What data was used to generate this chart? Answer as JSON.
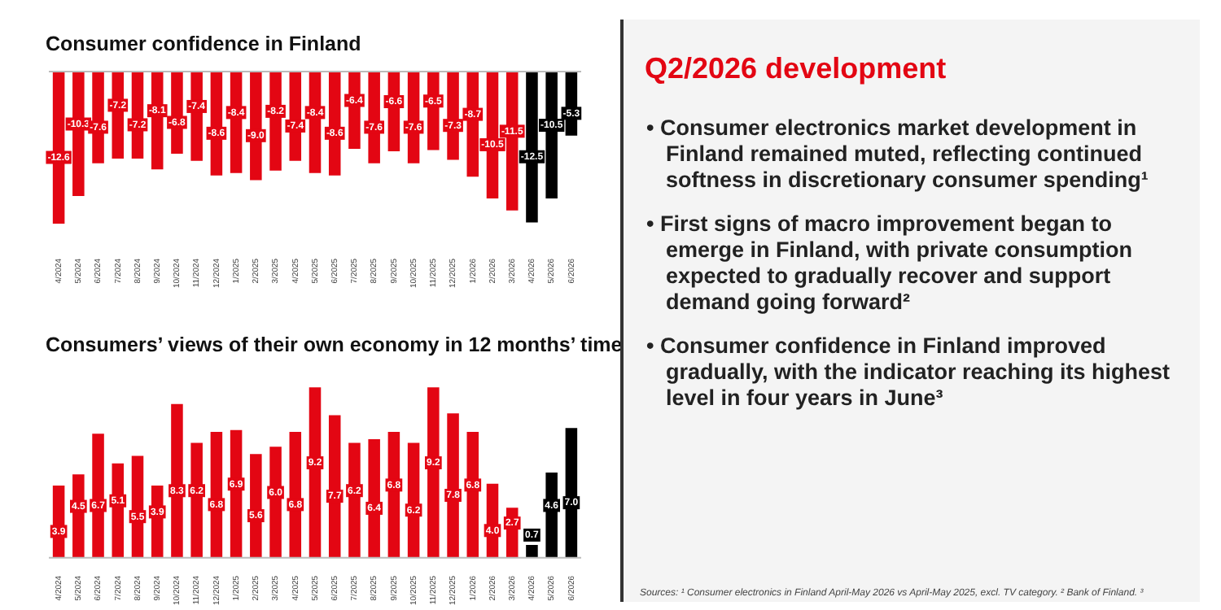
{
  "chart_data": [
    {
      "type": "bar",
      "title": "Consumer confidence in Finland",
      "categories": [
        "4/2024",
        "5/2024",
        "6/2024",
        "7/2024",
        "8/2024",
        "9/2024",
        "10/2024",
        "11/2024",
        "12/2024",
        "1/2025",
        "2/2025",
        "3/2025",
        "4/2025",
        "5/2025",
        "6/2025",
        "7/2025",
        "8/2025",
        "9/2025",
        "10/2025",
        "11/2025",
        "12/2025",
        "1/2026",
        "2/2026",
        "3/2026",
        "4/2026",
        "5/2026",
        "6/2026"
      ],
      "values": [
        -12.6,
        -10.3,
        -7.6,
        -7.2,
        -7.2,
        -8.1,
        -6.8,
        -7.4,
        -8.6,
        -8.4,
        -9.0,
        -8.2,
        -7.4,
        -8.4,
        -8.6,
        -6.4,
        -7.6,
        -6.6,
        -7.6,
        -6.5,
        -7.3,
        -8.7,
        -10.5,
        -11.5,
        -12.5,
        -10.5,
        -5.3
      ],
      "value_labels": [
        "-12.6",
        "-10.3",
        "-7.6",
        "-7.2",
        "-7.2",
        "-8.1",
        "-6.8",
        "-7.4",
        "-8.6",
        "-8.4",
        "-9.0",
        "-8.2",
        "-7.4",
        "-8.4",
        "-8.6",
        "-6.4",
        "-7.6",
        "-6.6",
        "-7.6",
        "-6.5",
        "-7.3",
        "-8.7",
        "-10.5",
        "-11.5",
        "-12.5",
        "-10.5",
        "-5.3"
      ],
      "colors": [
        "#e30613",
        "#e30613",
        "#e30613",
        "#e30613",
        "#e30613",
        "#e30613",
        "#e30613",
        "#e30613",
        "#e30613",
        "#e30613",
        "#e30613",
        "#e30613",
        "#e30613",
        "#e30613",
        "#e30613",
        "#e30613",
        "#e30613",
        "#e30613",
        "#e30613",
        "#e30613",
        "#e30613",
        "#e30613",
        "#e30613",
        "#e30613",
        "#000000",
        "#000000",
        "#000000"
      ],
      "tick_labels": "x"
    },
    {
      "type": "bar",
      "title": "Consumers’ views of their own economy in 12 months’ time",
      "categories": [
        "4/2024",
        "5/2024",
        "6/2024",
        "7/2024",
        "8/2024",
        "9/2024",
        "10/2024",
        "11/2024",
        "12/2024",
        "1/2025",
        "2/2025",
        "3/2025",
        "4/2025",
        "5/2025",
        "6/2025",
        "7/2025",
        "8/2025",
        "9/2025",
        "10/2025",
        "11/2025",
        "12/2025",
        "1/2026",
        "2/2026",
        "3/2026",
        "4/2026",
        "5/2026",
        "6/2026"
      ],
      "values": [
        3.9,
        4.5,
        6.7,
        5.1,
        5.5,
        3.9,
        8.3,
        6.2,
        6.8,
        6.9,
        5.6,
        6.0,
        6.8,
        9.2,
        7.7,
        6.2,
        6.4,
        6.8,
        6.2,
        9.2,
        7.8,
        6.8,
        4.0,
        2.7,
        0.7,
        4.6,
        7.0
      ],
      "value_labels": [
        "3.9",
        "4.5",
        "6.7",
        "5.1",
        "5.5",
        "3.9",
        "8.3",
        "6.2",
        "6.8",
        "6.9",
        "5.6",
        "6.0",
        "6.8",
        "9.2",
        "7.7",
        "6.2",
        "6.4",
        "6.8",
        "6.2",
        "9.2",
        "7.8",
        "6.8",
        "4.0",
        "2.7",
        "0.7",
        "4.6",
        "7.0"
      ],
      "colors": [
        "#e30613",
        "#e30613",
        "#e30613",
        "#e30613",
        "#e30613",
        "#e30613",
        "#e30613",
        "#e30613",
        "#e30613",
        "#e30613",
        "#e30613",
        "#e30613",
        "#e30613",
        "#e30613",
        "#e30613",
        "#e30613",
        "#e30613",
        "#e30613",
        "#e30613",
        "#e30613",
        "#e30613",
        "#e30613",
        "#e30613",
        "#e30613",
        "#000000",
        "#000000",
        "#000000"
      ],
      "tick_labels": "x"
    },
    {
      "type": "other",
      "title": "Q2/2026 development",
      "annotations": [
        "• Consumer electronics market development in Finland remained muted, reflecting continued softness in discretionary consumer spending¹",
        "• First signs of macro improvement began to emerge in Finland, with private consumption expected to gradually recover and support demand going forward²",
        "• Consumer confidence in Finland improved gradually, with the indicator reaching its highest level in four years in June³",
        "Sources: ¹ Consumer electronics in Finland April-May 2026 vs April-May 2025, excl. TV category. ² Bank of Finland. ³"
      ]
    }
  ]
}
